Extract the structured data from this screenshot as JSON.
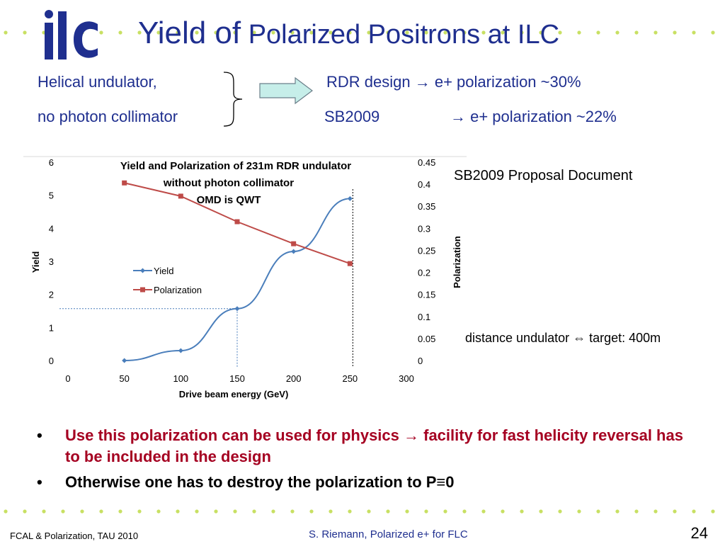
{
  "slide": {
    "title_part1": "Yield of",
    "title_part2": " Polarized Positrons at ILC",
    "logo_text": "ilc",
    "left_line1": "Helical undulator,",
    "left_line2": "no photon collimator",
    "right_line1": "RDR  design → e+ polarization ~30%",
    "right_line2_label": "SB2009",
    "right_line2_value": "→ e+ polarization ~22%",
    "source_note": "SB2009 Proposal Document",
    "distance_note": "distance undulator ⇔ target: 400m",
    "bullet1": "Use this polarization can be used for physics → facility for  fast helicity reversal has to be included in the design",
    "bullet2": "Otherwise one has to destroy the polarization to P≡0",
    "footer_left": "FCAL & Polarization, TAU 2010",
    "footer_center": "S. Riemann, Polarized e+ for FLC",
    "page_number": "24",
    "colors": {
      "title": "#1f2f8f",
      "dots": "#c8e063",
      "bullet_red": "#a50021",
      "yield_series": "#4a7ebb",
      "polarization_series": "#be4b48"
    }
  },
  "chart_data": {
    "type": "line",
    "title_lines": [
      "Yield and Polarization of 231m RDR undulator",
      "without photon collimator",
      "OMD is QWT"
    ],
    "xlabel": "Drive beam energy (GeV)",
    "ylabel": "Yield",
    "y2label": "Polarization",
    "xlim": [
      0,
      300
    ],
    "ylim": [
      0,
      6
    ],
    "y2lim": [
      0,
      0.45
    ],
    "x_ticks": [
      0,
      50,
      100,
      150,
      200,
      250,
      300
    ],
    "y_ticks": [
      0,
      1,
      2,
      3,
      4,
      5,
      6
    ],
    "y2_ticks": [
      "0",
      "0.05",
      "0.1",
      "0.15",
      "0.2",
      "0.25",
      "0.3",
      "0.35",
      "0.4",
      "0.45"
    ],
    "grid": false,
    "legend_placement": "middle-left",
    "series": [
      {
        "name": "Yield",
        "axis": "left",
        "x": [
          50,
          100,
          150,
          200,
          250
        ],
        "values": [
          0.0,
          0.3,
          1.57,
          3.3,
          4.9
        ]
      },
      {
        "name": "Polarization",
        "axis": "right",
        "x": [
          50,
          100,
          150,
          200,
          250
        ],
        "values": [
          0.403,
          0.373,
          0.315,
          0.265,
          0.22
        ]
      }
    ],
    "reference_points": [
      {
        "x": 150,
        "y": 1.57
      },
      {
        "x": 250,
        "y": 4.9
      }
    ]
  }
}
